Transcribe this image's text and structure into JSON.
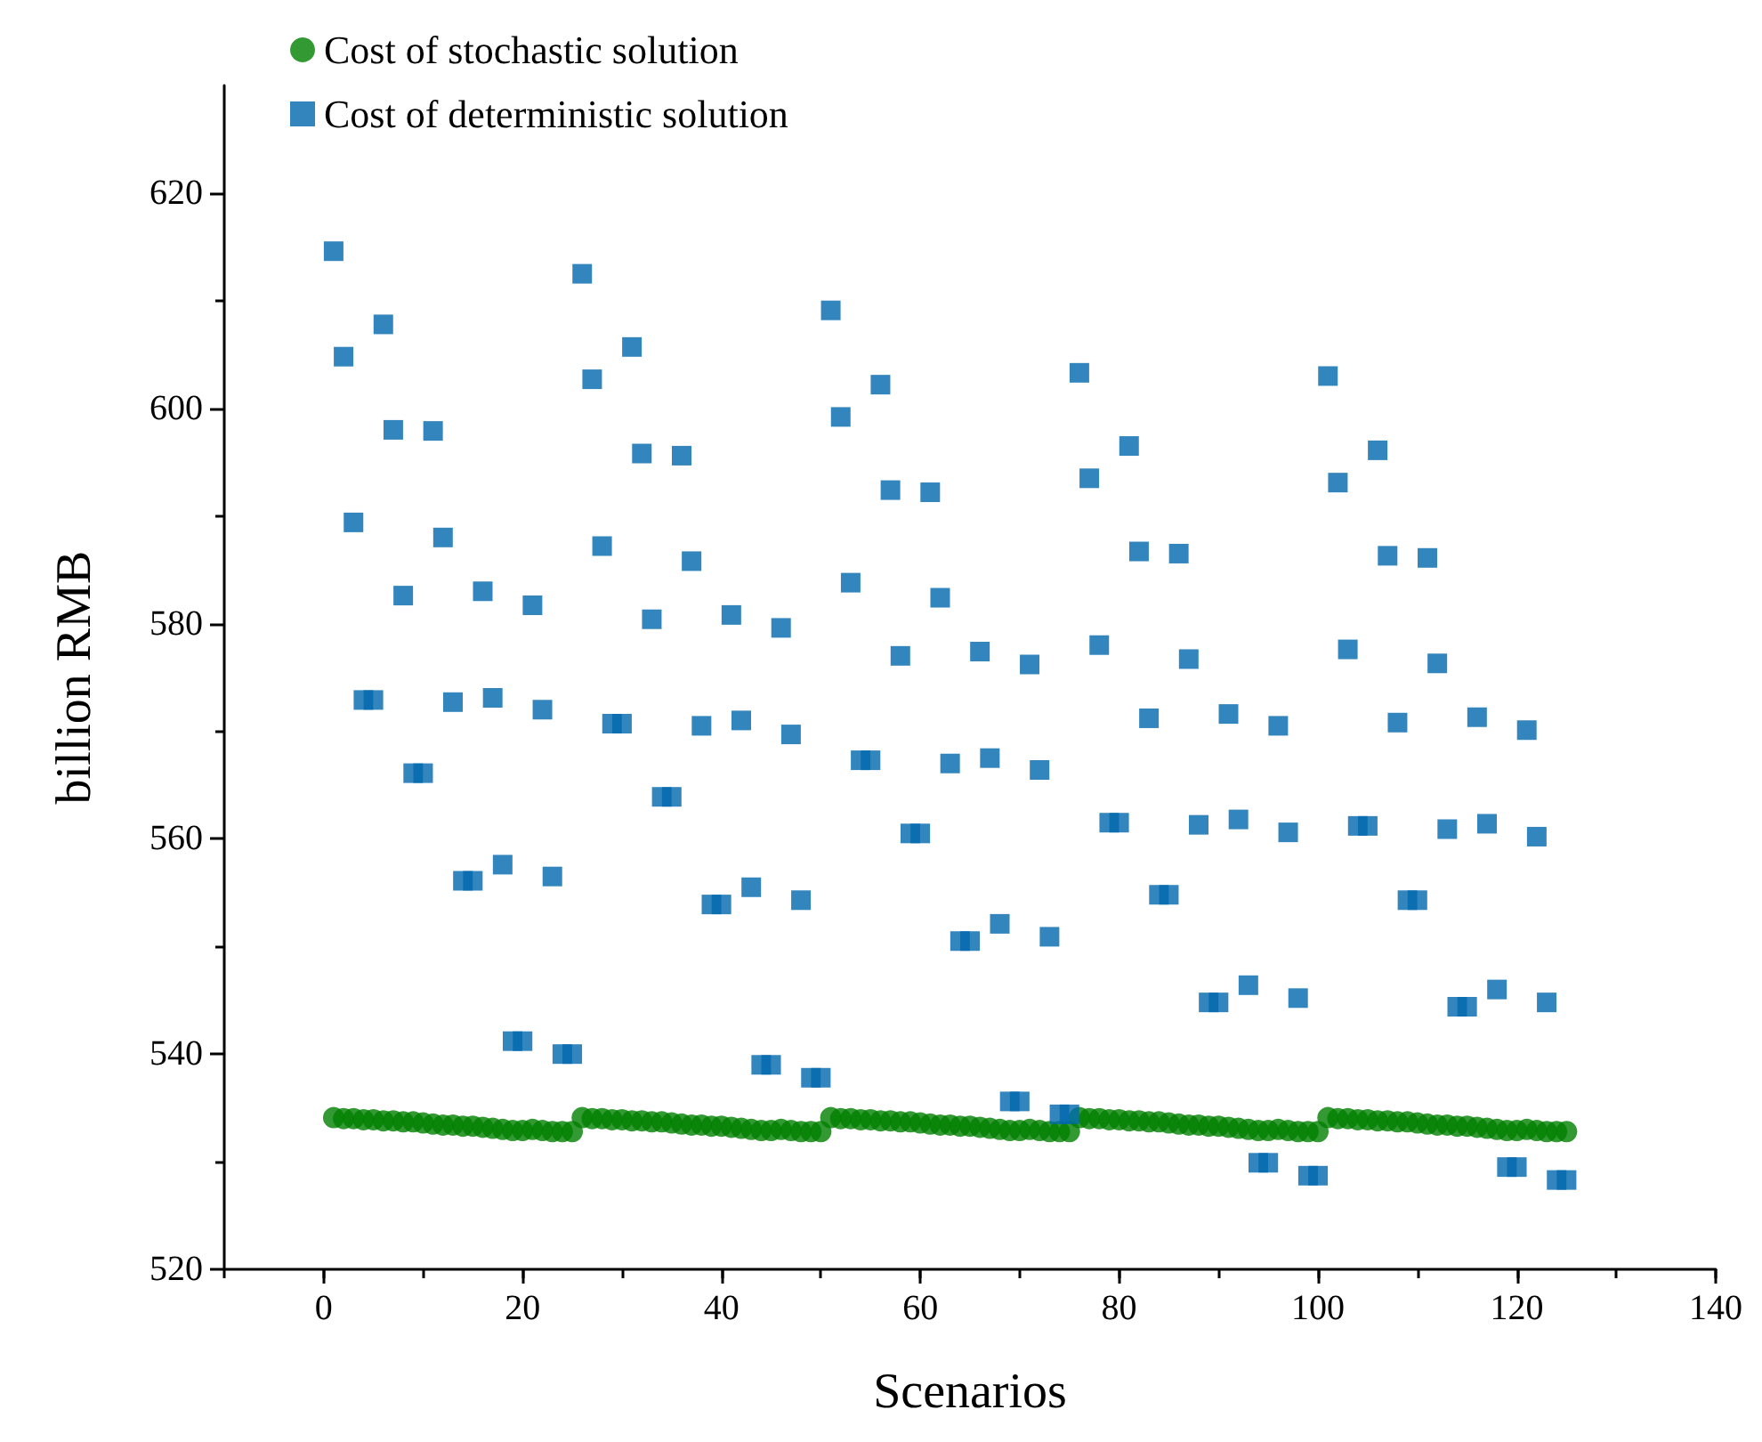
{
  "chart_data": {
    "type": "scatter",
    "xlabel": "Scenarios",
    "ylabel": "billion RMB",
    "xlim": [
      -10,
      140
    ],
    "ylim": [
      520,
      630
    ],
    "xticks": [
      0,
      20,
      40,
      60,
      80,
      100,
      120,
      140
    ],
    "yticks": [
      520,
      540,
      560,
      580,
      600,
      620
    ],
    "grid": false,
    "legend": "top left",
    "x": [
      1,
      2,
      3,
      4,
      5,
      6,
      7,
      8,
      9,
      10,
      11,
      12,
      13,
      14,
      15,
      16,
      17,
      18,
      19,
      20,
      21,
      22,
      23,
      24,
      25,
      26,
      27,
      28,
      29,
      30,
      31,
      32,
      33,
      34,
      35,
      36,
      37,
      38,
      39,
      40,
      41,
      42,
      43,
      44,
      45,
      46,
      47,
      48,
      49,
      50,
      51,
      52,
      53,
      54,
      55,
      56,
      57,
      58,
      59,
      60,
      61,
      62,
      63,
      64,
      65,
      66,
      67,
      68,
      69,
      70,
      71,
      72,
      73,
      74,
      75,
      76,
      77,
      78,
      79,
      80,
      81,
      82,
      83,
      84,
      85,
      86,
      87,
      88,
      89,
      90,
      91,
      92,
      93,
      94,
      95,
      96,
      97,
      98,
      99,
      100,
      101,
      102,
      103,
      104,
      105,
      106,
      107,
      108,
      109,
      110,
      111,
      112,
      113,
      114,
      115,
      116,
      117,
      118,
      119,
      120,
      121,
      122,
      123,
      124,
      125
    ],
    "series": [
      {
        "name": "Cost of stochastic solution",
        "color": "#008000",
        "marker": "circle",
        "values": [
          534.1,
          534.0,
          534.0,
          533.9,
          533.9,
          533.8,
          533.8,
          533.7,
          533.7,
          533.6,
          533.5,
          533.4,
          533.4,
          533.3,
          533.3,
          533.2,
          533.1,
          533.0,
          532.9,
          532.9,
          533.0,
          532.9,
          532.8,
          532.8,
          532.8,
          534.1,
          534.0,
          534.0,
          533.9,
          533.9,
          533.8,
          533.8,
          533.7,
          533.7,
          533.6,
          533.5,
          533.4,
          533.4,
          533.3,
          533.3,
          533.2,
          533.1,
          533.0,
          532.9,
          532.9,
          533.0,
          532.9,
          532.8,
          532.8,
          532.8,
          534.1,
          534.0,
          534.0,
          533.9,
          533.9,
          533.8,
          533.8,
          533.7,
          533.7,
          533.6,
          533.5,
          533.4,
          533.4,
          533.3,
          533.3,
          533.2,
          533.1,
          533.0,
          532.9,
          532.9,
          533.0,
          532.9,
          532.8,
          532.8,
          532.8,
          534.1,
          534.0,
          534.0,
          533.9,
          533.9,
          533.8,
          533.8,
          533.7,
          533.7,
          533.6,
          533.5,
          533.4,
          533.4,
          533.3,
          533.3,
          533.2,
          533.1,
          533.0,
          532.9,
          532.9,
          533.0,
          532.9,
          532.8,
          532.8,
          532.8,
          534.1,
          534.0,
          534.0,
          533.9,
          533.9,
          533.8,
          533.8,
          533.7,
          533.7,
          533.6,
          533.5,
          533.4,
          533.4,
          533.3,
          533.3,
          533.2,
          533.1,
          533.0,
          532.9,
          532.9,
          533.0,
          532.9,
          532.8,
          532.8,
          532.8
        ]
      },
      {
        "name": "Cost of deterministic solution",
        "color": "#0068ad",
        "marker": "square",
        "values": [
          614.6,
          604.8,
          589.4,
          572.9,
          572.9,
          607.8,
          598,
          582.6,
          566.1,
          566.1,
          597.9,
          588,
          572.7,
          556.1,
          556.1,
          583,
          573.1,
          557.6,
          541.2,
          541.2,
          581.7,
          572,
          556.5,
          540,
          540,
          612.5,
          602.7,
          587.2,
          570.7,
          570.7,
          605.7,
          595.8,
          580.4,
          563.9,
          563.9,
          595.6,
          585.8,
          570.5,
          553.9,
          553.9,
          580.8,
          571,
          555.5,
          539,
          539,
          579.6,
          569.7,
          554.3,
          537.8,
          537.8,
          609.1,
          599.2,
          583.8,
          567.3,
          567.3,
          602.2,
          592.4,
          577,
          560.5,
          560.5,
          592.2,
          582.4,
          567,
          550.5,
          550.5,
          577.4,
          567.5,
          552.1,
          535.6,
          535.6,
          576.2,
          566.4,
          550.9,
          534.4,
          534.4,
          603.3,
          593.5,
          578,
          561.5,
          561.5,
          596.5,
          586.7,
          571.2,
          554.8,
          554.8,
          586.5,
          576.7,
          561.3,
          544.8,
          544.8,
          571.6,
          561.8,
          546.4,
          529.9,
          529.9,
          570.5,
          560.6,
          545.2,
          528.7,
          528.7,
          603,
          593.1,
          577.6,
          561.2,
          561.2,
          596.1,
          586.3,
          570.8,
          554.3,
          554.3,
          586.1,
          576.3,
          560.9,
          544.4,
          544.4,
          571.3,
          561.4,
          546,
          529.5,
          529.5,
          570.1,
          560.2,
          544.8,
          528.3,
          528.3
        ]
      }
    ]
  }
}
